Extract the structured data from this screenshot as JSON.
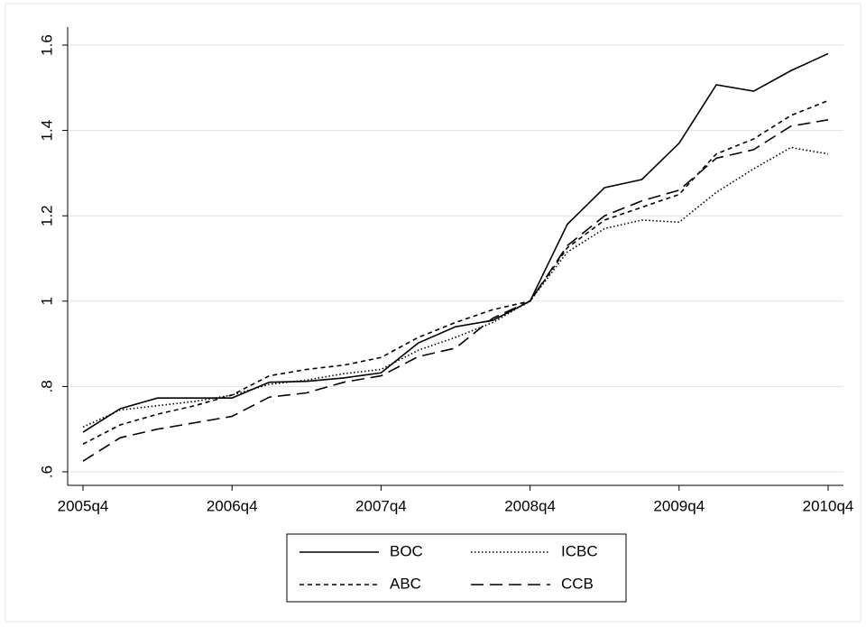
{
  "chart_data": {
    "type": "line",
    "categories": [
      "2005q4",
      null,
      null,
      null,
      "2006q4",
      null,
      null,
      null,
      "2007q4",
      null,
      null,
      null,
      "2008q4",
      null,
      null,
      null,
      "2009q4",
      null,
      null,
      null,
      "2010q4"
    ],
    "series": [
      {
        "name": "BOC",
        "color": "#000000",
        "dash": "solid",
        "values": [
          0.693,
          0.748,
          0.773,
          0.773,
          0.773,
          0.81,
          0.812,
          0.82,
          0.832,
          0.902,
          0.94,
          0.955,
          1.0,
          1.18,
          1.266,
          1.285,
          1.37,
          1.507,
          1.492,
          1.54,
          1.58
        ]
      },
      {
        "name": "ICBC",
        "color": "#000000",
        "dash": "dotted",
        "values": [
          0.705,
          0.745,
          0.755,
          0.765,
          0.78,
          0.805,
          0.815,
          0.83,
          0.84,
          0.885,
          0.915,
          0.95,
          1.0,
          1.115,
          1.17,
          1.19,
          1.185,
          1.255,
          1.31,
          1.36,
          1.345
        ]
      },
      {
        "name": "ABC",
        "color": "#000000",
        "dash": "short-dash",
        "values": [
          0.665,
          0.71,
          0.735,
          0.755,
          0.78,
          0.825,
          0.84,
          0.85,
          0.868,
          0.915,
          0.95,
          0.98,
          1.0,
          1.125,
          1.19,
          1.22,
          1.25,
          1.345,
          1.38,
          1.435,
          1.47
        ]
      },
      {
        "name": "CCB",
        "color": "#000000",
        "dash": "long-dash",
        "values": [
          0.625,
          0.68,
          0.7,
          0.715,
          0.73,
          0.775,
          0.785,
          0.81,
          0.825,
          0.87,
          0.89,
          0.96,
          1.0,
          1.13,
          1.2,
          1.235,
          1.26,
          1.335,
          1.355,
          1.41,
          1.425
        ]
      }
    ],
    "ylim": [
      0.6,
      1.6
    ],
    "yticks": [
      {
        "value": 0.6,
        "label": ".6"
      },
      {
        "value": 0.8,
        "label": ".8"
      },
      1,
      1.2,
      1.4,
      1.6
    ],
    "grid": true,
    "legend": "bottom"
  }
}
